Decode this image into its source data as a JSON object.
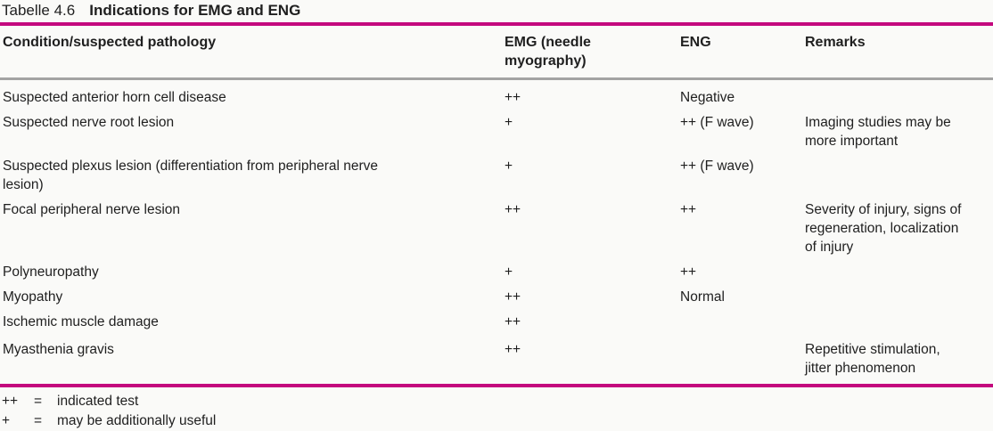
{
  "caption": {
    "label": "Tabelle 4.6",
    "title": "Indications for EMG and ENG"
  },
  "table": {
    "headers": {
      "condition": "Condition/suspected pathology",
      "emg": "EMG (needle myography)",
      "eng": "ENG",
      "remarks": "Remarks"
    },
    "rows": [
      {
        "condition": "Suspected anterior horn cell disease",
        "emg": "++",
        "eng": "Negative",
        "remarks": ""
      },
      {
        "condition": "Suspected nerve root lesion",
        "emg": "+",
        "eng": "++ (F wave)",
        "remarks": "Imaging studies may be more important"
      },
      {
        "condition": "Suspected plexus lesion (differentiation from peripheral nerve lesion)",
        "emg": "+",
        "eng": "++ (F wave)",
        "remarks": ""
      },
      {
        "condition": "Focal peripheral nerve lesion",
        "emg": "++",
        "eng": "++",
        "remarks": "Severity of injury, signs of regeneration, localization of injury"
      },
      {
        "condition": "Polyneuropathy",
        "emg": "+",
        "eng": "++",
        "remarks": ""
      },
      {
        "condition": "Myopathy",
        "emg": "++",
        "eng": "Normal",
        "remarks": ""
      },
      {
        "condition": "Ischemic muscle damage",
        "emg": "++",
        "eng": "",
        "remarks": ""
      },
      {
        "condition": "Myasthenia gravis",
        "emg": "++",
        "eng": "",
        "remarks": "Repetitive stimulation, jitter phenomenon"
      }
    ]
  },
  "legend": {
    "items": [
      {
        "symbol": "++",
        "equals": "=",
        "meaning": "indicated test"
      },
      {
        "symbol": "+",
        "equals": "=",
        "meaning": "may be additionally useful"
      }
    ]
  },
  "colors": {
    "accent": "#c4087e",
    "divider": "#a3a3a3"
  }
}
